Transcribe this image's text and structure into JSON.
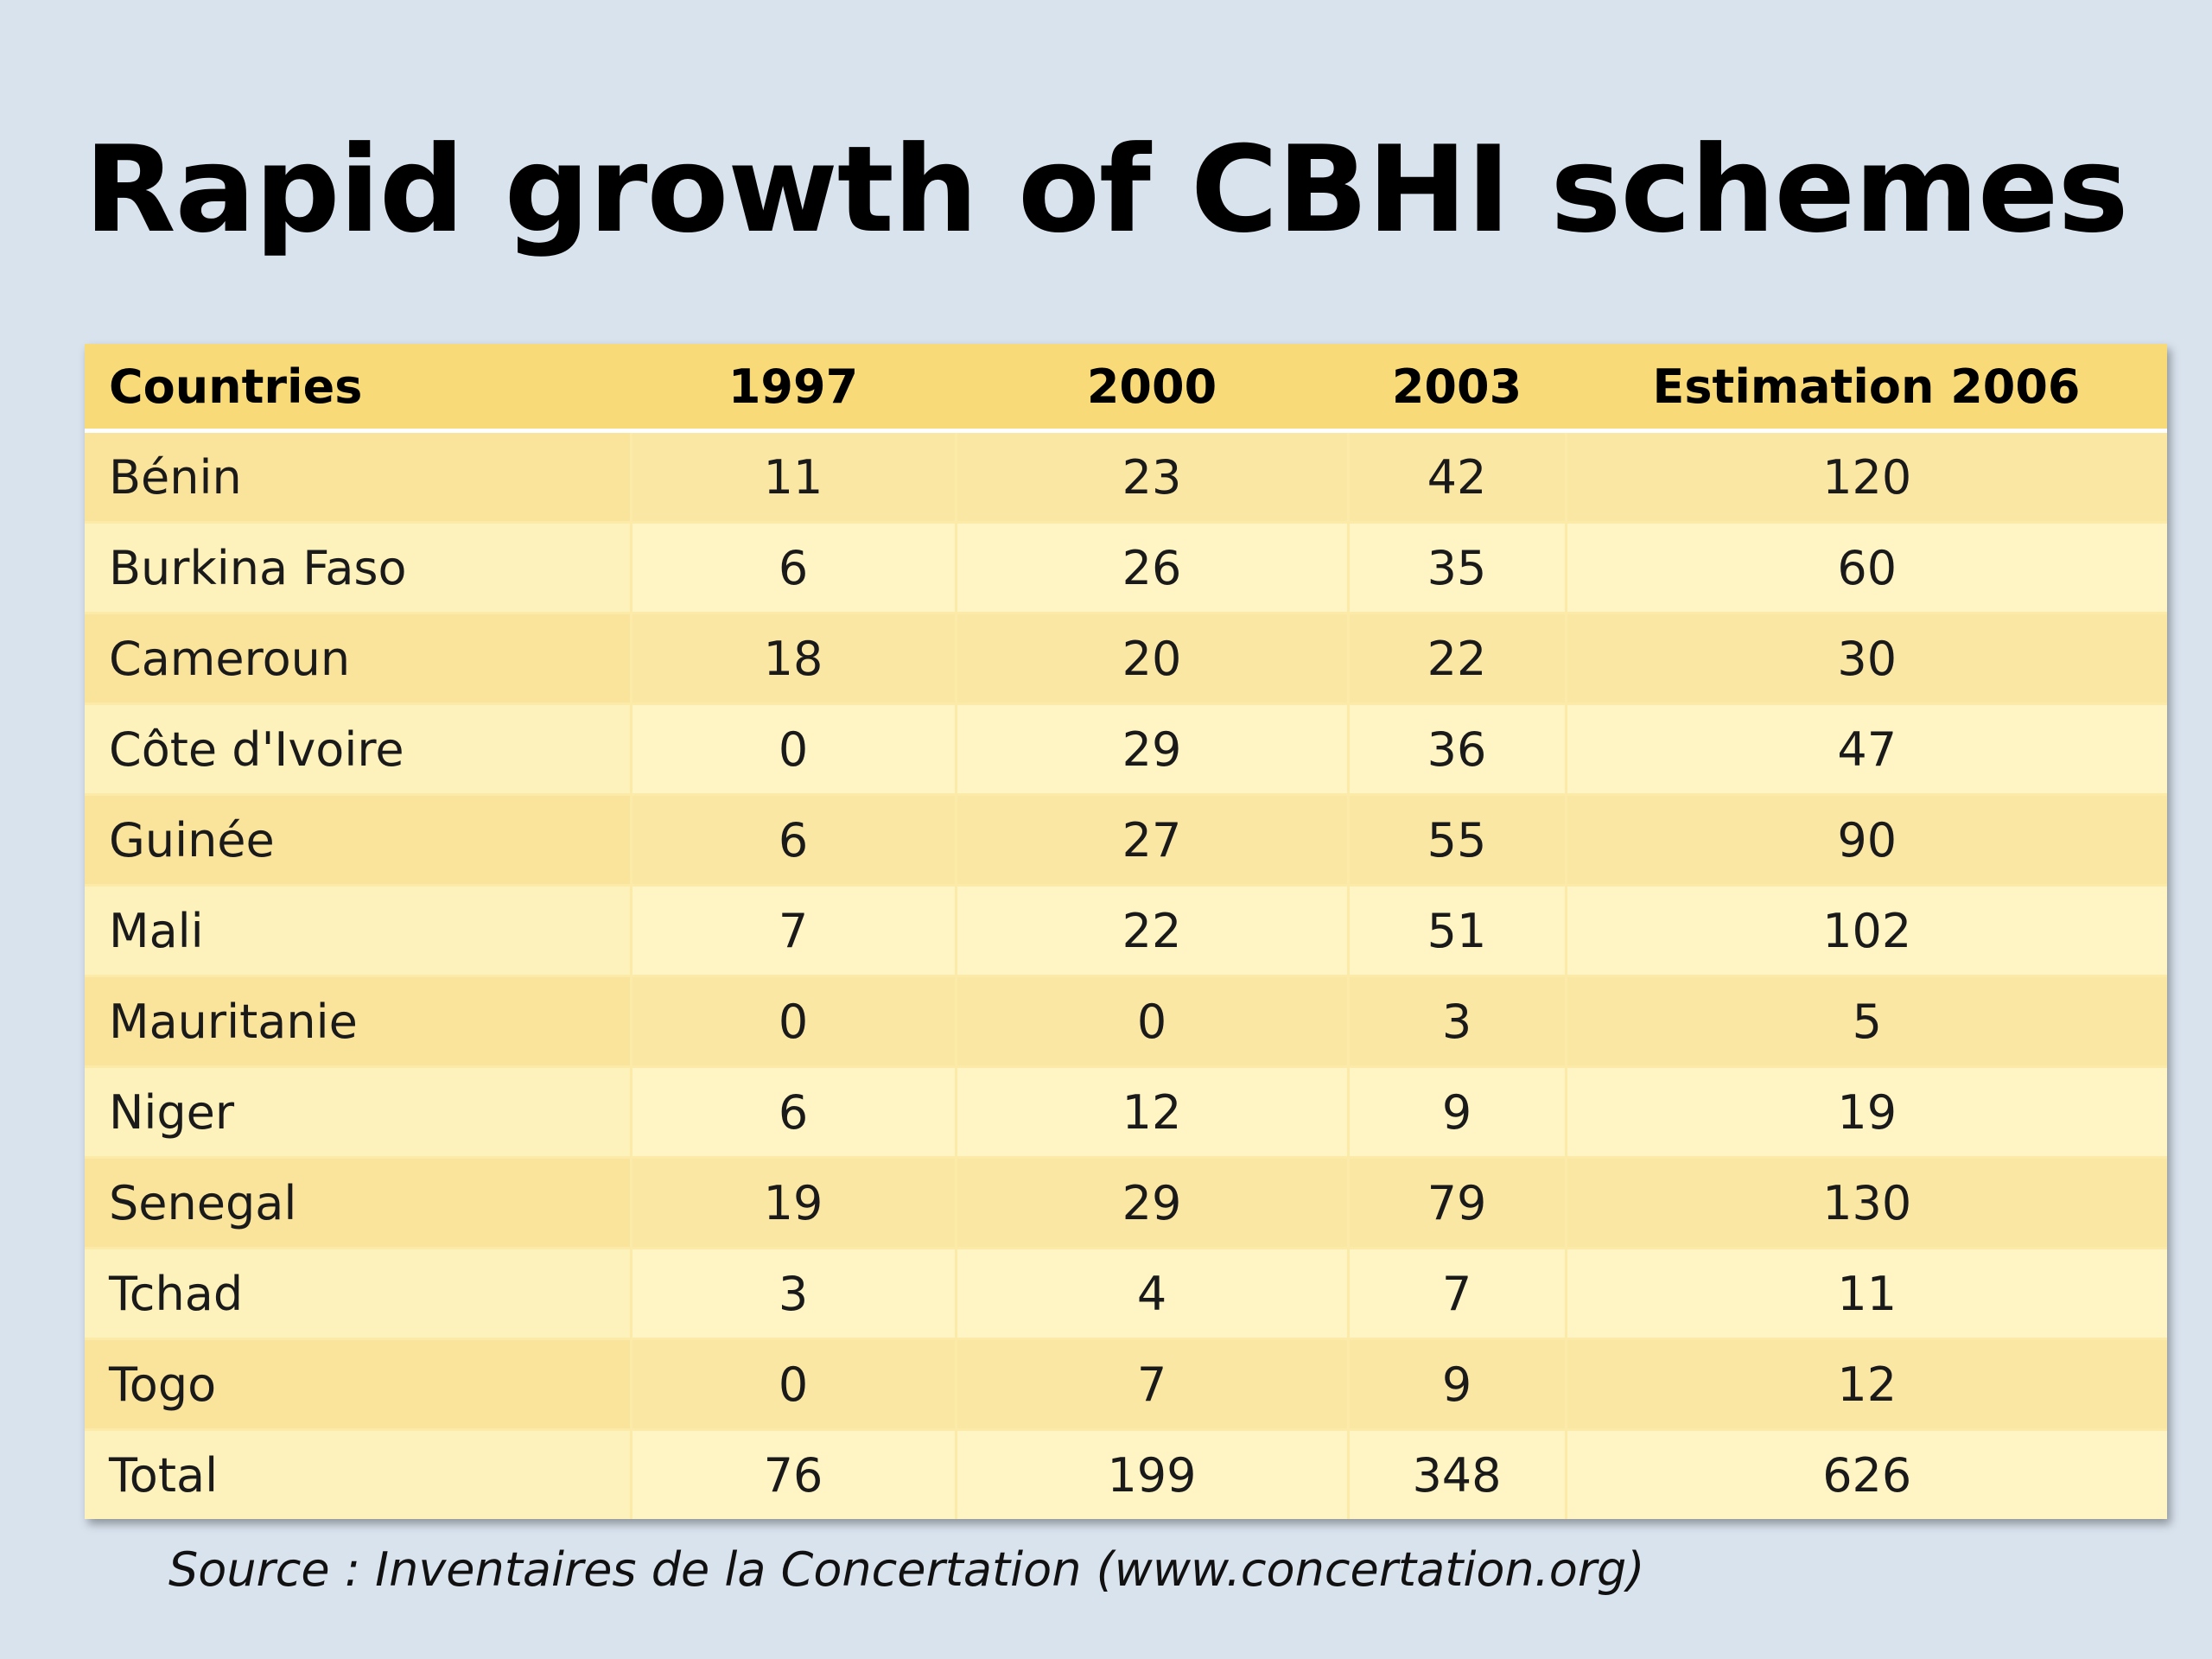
{
  "title": "Rapid growth of CBHI schemes",
  "table": {
    "headers": [
      "Countries",
      "1997",
      "2000",
      "2003",
      "Estimation 2006"
    ],
    "rows": [
      [
        "Bénin",
        "11",
        "23",
        "42",
        "120"
      ],
      [
        "Burkina Faso",
        "6",
        "26",
        "35",
        "60"
      ],
      [
        "Cameroun",
        "18",
        "20",
        "22",
        "30"
      ],
      [
        "Côte d'Ivoire",
        "0",
        "29",
        "36",
        "47"
      ],
      [
        "Guinée",
        "6",
        "27",
        "55",
        "90"
      ],
      [
        "Mali",
        "7",
        "22",
        "51",
        "102"
      ],
      [
        "Mauritanie",
        "0",
        "0",
        "3",
        "5"
      ],
      [
        "Niger",
        "6",
        "12",
        "9",
        "19"
      ],
      [
        "Senegal",
        "19",
        "29",
        "79",
        "130"
      ],
      [
        "Tchad",
        "3",
        "4",
        "7",
        "11"
      ],
      [
        "Togo",
        "0",
        "7",
        "9",
        "12"
      ],
      [
        "Total",
        "76",
        "199",
        "348",
        "626"
      ]
    ]
  },
  "source": "Source : Inventaires de la Concertation (www.concertation.org)",
  "colors": {
    "background": "#d9e3ee",
    "header": "#f8da78",
    "row_dark": "#fbe7a4",
    "row_light": "#fff5c4"
  }
}
